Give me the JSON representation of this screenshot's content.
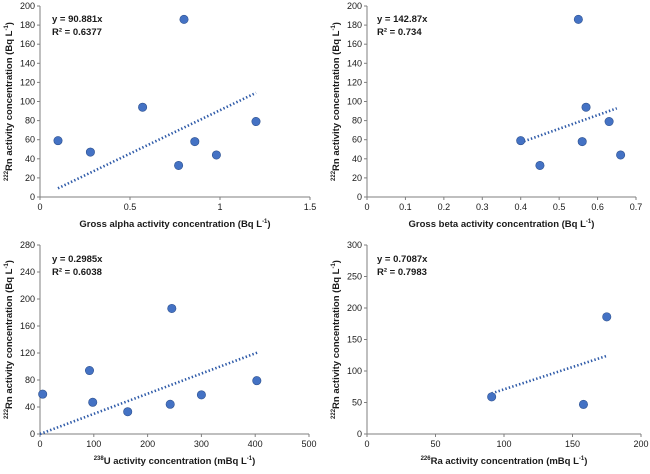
{
  "chart_data": [
    {
      "type": "scatter",
      "xlabel": {
        "pre": "Gross alpha activity concentration (Bq L",
        "sup": "-1",
        "post": ")"
      },
      "ylabel": {
        "sup": "222",
        "main": "Rn activity concentration (Bq L",
        "sup2": "-1",
        "post": ")"
      },
      "xlim": [
        0,
        1.5
      ],
      "ylim": [
        0,
        200
      ],
      "xticks": [
        "0",
        "0.5",
        "1",
        "1.5"
      ],
      "xtick_values": [
        0,
        0.5,
        1,
        1.5
      ],
      "yticks": [
        "0",
        "20",
        "40",
        "60",
        "80",
        "100",
        "120",
        "140",
        "160",
        "180",
        "200"
      ],
      "ytick_values": [
        0,
        20,
        40,
        60,
        80,
        100,
        120,
        140,
        160,
        180,
        200
      ],
      "x": [
        0.1,
        0.28,
        0.57,
        0.77,
        0.8,
        0.86,
        0.98,
        1.2
      ],
      "y": [
        59,
        47,
        94,
        33,
        186,
        58,
        44,
        79
      ],
      "trendline": {
        "slope": 90.881,
        "x_range": [
          0.1,
          1.2
        ]
      },
      "equation": "y = 90.881x",
      "r2": "R² = 0.6377"
    },
    {
      "type": "scatter",
      "xlabel": {
        "pre": "Gross beta activity concentration (Bq L",
        "sup": "-1",
        "post": ")"
      },
      "ylabel": {
        "sup": "222",
        "main": "Rn activity concentration (Bq L",
        "sup2": "-1",
        "post": ")"
      },
      "xlim": [
        0,
        0.7
      ],
      "ylim": [
        0,
        200
      ],
      "xticks": [
        "0",
        "0.1",
        "0.2",
        "0.3",
        "0.4",
        "0.5",
        "0.6",
        "0.7"
      ],
      "xtick_values": [
        0,
        0.1,
        0.2,
        0.3,
        0.4,
        0.5,
        0.6,
        0.7
      ],
      "yticks": [
        "0",
        "20",
        "40",
        "60",
        "80",
        "100",
        "120",
        "140",
        "160",
        "180",
        "200"
      ],
      "ytick_values": [
        0,
        20,
        40,
        60,
        80,
        100,
        120,
        140,
        160,
        180,
        200
      ],
      "x": [
        0.4,
        0.45,
        0.55,
        0.56,
        0.57,
        0.63,
        0.66
      ],
      "y": [
        59,
        33,
        186,
        58,
        94,
        79,
        44
      ],
      "trendline": {
        "slope": 142.87,
        "x_range": [
          0.4,
          0.65
        ]
      },
      "equation": "y = 142.87x",
      "r2": "R² = 0.734"
    },
    {
      "type": "scatter",
      "xlabel": {
        "pre_sup": "238",
        "pre": "U activity concentration (mBq L",
        "sup": "-1",
        "post": ")"
      },
      "ylabel": {
        "sup": "222",
        "main": "Rn activity concentration (Bq L",
        "sup2": "-1",
        "post": ")"
      },
      "xlim": [
        0,
        500
      ],
      "ylim": [
        0,
        280
      ],
      "xticks": [
        "0",
        "100",
        "200",
        "300",
        "400",
        "500"
      ],
      "xtick_values": [
        0,
        100,
        200,
        300,
        400,
        500
      ],
      "yticks": [
        "0",
        "40",
        "80",
        "120",
        "160",
        "200",
        "240",
        "280"
      ],
      "ytick_values": [
        0,
        40,
        80,
        120,
        160,
        200,
        240,
        280
      ],
      "x": [
        5,
        92,
        98,
        163,
        242,
        245,
        300,
        403
      ],
      "y": [
        59,
        94,
        47,
        33,
        44,
        186,
        58,
        79
      ],
      "trendline": {
        "slope": 0.2985,
        "x_range": [
          0,
          405
        ]
      },
      "equation": "y = 0.2985x",
      "r2": "R² = 0.6038"
    },
    {
      "type": "scatter",
      "xlabel": {
        "pre_sup": "226",
        "pre": "Ra activity concentration (mBq L",
        "sup": "-1",
        "post": ")"
      },
      "ylabel": {
        "sup": "222",
        "main": "Rn activity concentration (Bq L",
        "sup2": "-1",
        "post": ")"
      },
      "xlim": [
        0,
        200
      ],
      "ylim": [
        0,
        300
      ],
      "xticks": [
        "0",
        "50",
        "100",
        "150",
        "200"
      ],
      "xtick_values": [
        0,
        50,
        100,
        150,
        200
      ],
      "yticks": [
        "0",
        "50",
        "100",
        "150",
        "200",
        "250",
        "300"
      ],
      "ytick_values": [
        0,
        50,
        100,
        150,
        200,
        250,
        300
      ],
      "x": [
        91,
        158,
        175
      ],
      "y": [
        59,
        47,
        186
      ],
      "trendline": {
        "slope": 0.7087,
        "x_range": [
          91,
          175
        ]
      },
      "equation": "y = 0.7087x",
      "r2": "R² = 0.7983"
    }
  ],
  "colors": {
    "marker": "#4472c4",
    "marker_stroke": "#2f528f",
    "trendline": "#2e5aa8",
    "axis": "#7f7f7f"
  }
}
